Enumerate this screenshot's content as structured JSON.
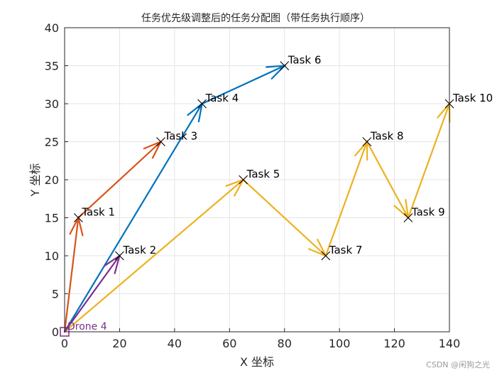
{
  "chart_data": {
    "type": "line",
    "title": "任务优先级调整后的任务分配图（带任务执行顺序）",
    "xlabel": "X 坐标",
    "ylabel": "Y 坐标",
    "xlim": [
      0,
      140
    ],
    "ylim": [
      0,
      40
    ],
    "xticks": [
      0,
      20,
      40,
      60,
      80,
      100,
      120,
      140
    ],
    "yticks": [
      0,
      5,
      10,
      15,
      20,
      25,
      30,
      35,
      40
    ],
    "grid": true,
    "tasks": [
      {
        "label": "Task 1",
        "x": 5,
        "y": 15
      },
      {
        "label": "Task 2",
        "x": 20,
        "y": 10
      },
      {
        "label": "Task 3",
        "x": 35,
        "y": 25
      },
      {
        "label": "Task 4",
        "x": 50,
        "y": 30
      },
      {
        "label": "Task 5",
        "x": 65,
        "y": 20
      },
      {
        "label": "Task 6",
        "x": 80,
        "y": 35
      },
      {
        "label": "Task 7",
        "x": 95,
        "y": 10
      },
      {
        "label": "Task 8",
        "x": 110,
        "y": 25
      },
      {
        "label": "Task 9",
        "x": 125,
        "y": 15
      },
      {
        "label": "Task 10",
        "x": 140,
        "y": 30
      }
    ],
    "routes": [
      {
        "color": "#D95319",
        "path": [
          [
            0,
            0
          ],
          [
            5,
            15
          ],
          [
            35,
            25
          ]
        ]
      },
      {
        "color": "#0072BD",
        "path": [
          [
            0,
            0
          ],
          [
            50,
            30
          ],
          [
            80,
            35
          ]
        ]
      },
      {
        "color": "#EDB120",
        "path": [
          [
            0,
            0
          ],
          [
            65,
            20
          ],
          [
            95,
            10
          ],
          [
            110,
            25
          ],
          [
            125,
            15
          ],
          [
            140,
            30
          ]
        ]
      },
      {
        "color": "#7E2F8E",
        "path": [
          [
            0,
            0
          ],
          [
            20,
            10
          ]
        ]
      }
    ],
    "depot": {
      "label": "Drone 4",
      "x": 0,
      "y": 0,
      "color": "#7E2F8E"
    }
  },
  "watermark": "CSDN @闲狗之光"
}
